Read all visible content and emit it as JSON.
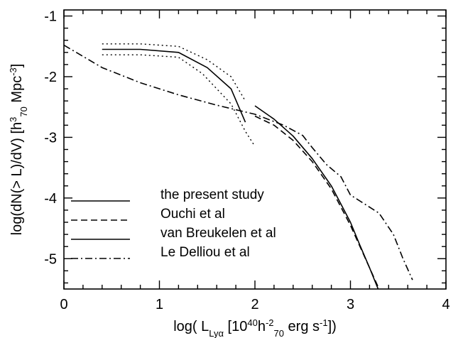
{
  "chart_data": {
    "type": "line",
    "xlabel": {
      "parts": [
        {
          "t": "log( L",
          "s": "n"
        },
        {
          "t": "Lyα",
          "s": "sub"
        },
        {
          "t": " [10",
          "s": "n"
        },
        {
          "t": "40",
          "s": "sup"
        },
        {
          "t": "h",
          "s": "n"
        },
        {
          "t": "-2",
          "s": "sup"
        },
        {
          "t": "70",
          "s": "sub"
        },
        {
          "t": " erg s",
          "s": "n"
        },
        {
          "t": "-1",
          "s": "sup"
        },
        {
          "t": "])",
          "s": "n"
        }
      ]
    },
    "ylabel": {
      "parts": [
        {
          "t": "log(dN(> L)/dV) [h",
          "s": "n"
        },
        {
          "t": "3",
          "s": "sup"
        },
        {
          "t": "70",
          "s": "sub"
        },
        {
          "t": " Mpc",
          "s": "n"
        },
        {
          "t": "-3",
          "s": "sup"
        },
        {
          "t": "]",
          "s": "n"
        }
      ]
    },
    "xlim": [
      0,
      4
    ],
    "ylim": [
      -5.5,
      -0.9
    ],
    "xticks": [
      {
        "v": 0,
        "label": "0"
      },
      {
        "v": 1,
        "label": "1"
      },
      {
        "v": 2,
        "label": "2"
      },
      {
        "v": 3,
        "label": "3"
      },
      {
        "v": 4,
        "label": "4"
      }
    ],
    "yticks": [
      {
        "v": -1,
        "label": "-1"
      },
      {
        "v": -2,
        "label": "-2"
      },
      {
        "v": -3,
        "label": "-3"
      },
      {
        "v": -4,
        "label": "-4"
      },
      {
        "v": -5,
        "label": "-5"
      }
    ],
    "grid": false,
    "legend_placement": "lower-left",
    "series": [
      {
        "name": "the present study",
        "style": "solid",
        "x": [
          0.4,
          0.8,
          1.2,
          1.5,
          1.75,
          1.9
        ],
        "y": [
          -1.55,
          -1.55,
          -1.6,
          -1.85,
          -2.2,
          -2.75
        ]
      },
      {
        "style": "dotted",
        "x": [
          0.4,
          0.8,
          1.2,
          1.5,
          1.75,
          1.9
        ],
        "y": [
          -1.46,
          -1.46,
          -1.5,
          -1.72,
          -2.0,
          -2.4
        ]
      },
      {
        "style": "dotted",
        "x": [
          0.4,
          0.8,
          1.2,
          1.45,
          1.75,
          1.9,
          2.0
        ],
        "y": [
          -1.64,
          -1.64,
          -1.68,
          -1.95,
          -2.45,
          -2.9,
          -3.15
        ]
      },
      {
        "name": "Ouchi et al",
        "style": "dashed",
        "x": [
          2.0,
          2.2,
          2.4,
          2.6,
          2.8,
          2.9,
          3.0,
          3.1,
          3.2,
          3.3
        ],
        "y": [
          -2.65,
          -2.8,
          -3.05,
          -3.4,
          -3.85,
          -4.15,
          -4.45,
          -4.8,
          -5.15,
          -5.5
        ]
      },
      {
        "name": "van Breukelen et al",
        "style": "solid",
        "x": [
          2.0,
          2.2,
          2.4,
          2.6,
          2.8,
          2.9,
          3.0,
          3.1,
          3.2,
          3.29
        ],
        "y": [
          -2.48,
          -2.7,
          -2.98,
          -3.35,
          -3.8,
          -4.1,
          -4.4,
          -4.78,
          -5.15,
          -5.5
        ]
      },
      {
        "name": "Le Delliou et al",
        "style": "dashdot",
        "x": [
          0.0,
          0.4,
          0.8,
          1.2,
          1.6,
          2.0,
          2.3,
          2.5,
          2.6,
          2.75,
          2.9,
          3.0,
          3.15,
          3.3,
          3.45,
          3.55,
          3.65
        ],
        "y": [
          -1.48,
          -1.85,
          -2.1,
          -2.3,
          -2.47,
          -2.62,
          -2.8,
          -2.97,
          -3.17,
          -3.45,
          -3.65,
          -3.95,
          -4.1,
          -4.25,
          -4.6,
          -5.0,
          -5.35
        ]
      }
    ],
    "legend": [
      {
        "label": "the present study",
        "style": "solid"
      },
      {
        "label": "Ouchi et al",
        "style": "dashed"
      },
      {
        "label": "van Breukelen et al",
        "style": "solid"
      },
      {
        "label": "Le Delliou et al",
        "style": "dashdot"
      }
    ]
  }
}
